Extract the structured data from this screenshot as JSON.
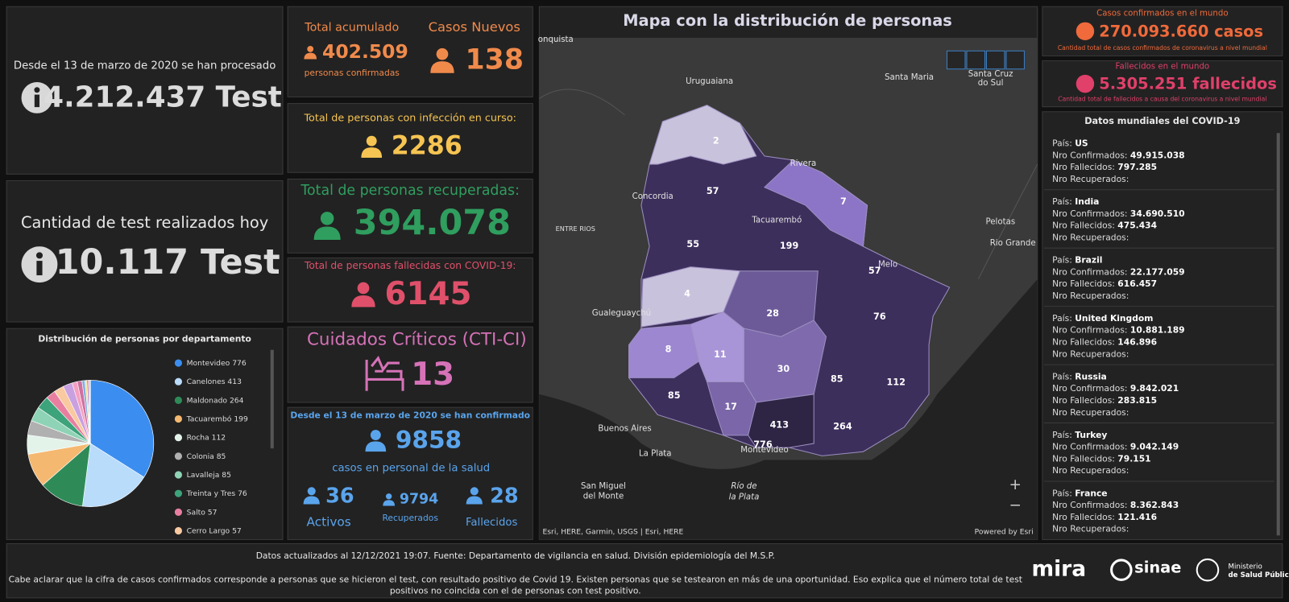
{
  "tests_total": {
    "caption": "Desde el 13 de marzo de 2020 se han procesado",
    "value": "4.212.437 Test"
  },
  "tests_today": {
    "caption": "Cantidad de test realizados hoy",
    "value": "10.117 Test"
  },
  "chart_data": {
    "type": "pie",
    "title": "Distribución de personas por departamento",
    "categories": [
      "Montevideo",
      "Canelones",
      "Maldonado",
      "Tacuarembó",
      "Rocha",
      "Colonia",
      "Lavalleja",
      "Treinta y Tres",
      "Salto",
      "Cerro Largo",
      null,
      null,
      null,
      null,
      null,
      null,
      null,
      null,
      null
    ],
    "values": [
      776,
      413,
      264,
      199,
      112,
      85,
      85,
      76,
      57,
      57,
      55,
      30,
      28,
      17,
      11,
      8,
      7,
      4,
      2
    ],
    "colors": [
      "#3b8ef0",
      "#b9dcfb",
      "#2e8b57",
      "#f5b870",
      "#e3f3ea",
      "#b0b0b0",
      "#8fd3b6",
      "#3da37a",
      "#e87fa0",
      "#f9c9a0",
      "#c9a0e0",
      "#f5a0c0",
      "#d070a0",
      "#7fb0e0",
      "#f0e090",
      "#a080d0",
      "#e06080",
      "#90c0a0",
      "#ffd0e0"
    ]
  },
  "cases": {
    "total_label": "Total acumulado",
    "total": "402.509",
    "total_caption": "personas confirmadas",
    "new_label": "Casos Nuevos",
    "new": "138"
  },
  "active": {
    "label": "Total de personas con infección en curso:",
    "value": "2286"
  },
  "recovered": {
    "label": "Total de personas recuperadas:",
    "value": "394.078"
  },
  "deaths": {
    "label": "Total de personas fallecidas con COVID-19:",
    "value": "6145"
  },
  "icu": {
    "label": "Cuidados Críticos (CTI-CI)",
    "value": "13"
  },
  "health_staff": {
    "caption": "Desde el 13 de marzo de 2020 se han confirmado",
    "value": "9858",
    "subtitle": "casos en personal de la salud",
    "active": "36",
    "active_label": "Activos",
    "recovered": "9794",
    "recovered_label": "Recuperados",
    "deaths": "28",
    "deaths_label": "Fallecidos"
  },
  "map": {
    "title": "Mapa con la distribución de personas",
    "places": [
      {
        "label": "onquista"
      },
      {
        "label": "Uruguaiana"
      },
      {
        "label": "Santa Maria"
      },
      {
        "label": "Santa Cruz"
      },
      {
        "label": "do Sul"
      },
      {
        "label": "Concordia"
      },
      {
        "label": "Rivera"
      },
      {
        "label": "Tacuarembó"
      },
      {
        "label": "ENTRE RIOS"
      },
      {
        "label": "Pelotas"
      },
      {
        "label": "Rio Grande"
      },
      {
        "label": "Melo"
      },
      {
        "label": "Gualeguaychú"
      },
      {
        "label": "Buenos Aires"
      },
      {
        "label": "Montevideo"
      },
      {
        "label": "La Plata"
      },
      {
        "label": "San Miguel"
      },
      {
        "label": "del Monte"
      },
      {
        "label": "Río de"
      },
      {
        "label": "la Plata"
      }
    ],
    "regions": [
      {
        "label": "2"
      },
      {
        "label": "57"
      },
      {
        "label": "7"
      },
      {
        "label": "55"
      },
      {
        "label": "199"
      },
      {
        "label": "57"
      },
      {
        "label": "4"
      },
      {
        "label": "28"
      },
      {
        "label": "76"
      },
      {
        "label": "8"
      },
      {
        "label": "11"
      },
      {
        "label": "30"
      },
      {
        "label": "85"
      },
      {
        "label": "112"
      },
      {
        "label": "85"
      },
      {
        "label": "17"
      },
      {
        "label": "413"
      },
      {
        "label": "264"
      },
      {
        "label": "776"
      }
    ],
    "attribution": "Esri, HERE, Garmin, USGS | Esri, HERE",
    "powered": "Powered by Esri"
  },
  "world": {
    "confirmed": {
      "title": "Casos confirmados en el mundo",
      "value": "270.093.660 casos",
      "caption": "Cantidad total de casos confirmados de coronavirus a nivel mundial"
    },
    "deaths": {
      "title": "Fallecidos en el mundo",
      "value": "5.305.251 fallecidos",
      "caption": "Cantidad total de fallecidos a causa del coronavirus a nivel mundial"
    },
    "list_title": "Datos mundiales del COVID-19",
    "fields": {
      "country": "País:",
      "confirmed": "Nro Confirmados:",
      "deaths": "Nro Fallecidos:",
      "recovered": "Nro Recuperados:"
    },
    "countries": [
      {
        "name": "US",
        "confirmed": "49.915.038",
        "deaths": "797.285"
      },
      {
        "name": "India",
        "confirmed": "34.690.510",
        "deaths": "475.434"
      },
      {
        "name": "Brazil",
        "confirmed": "22.177.059",
        "deaths": "616.457"
      },
      {
        "name": "United Kingdom",
        "confirmed": "10.881.189",
        "deaths": "146.896"
      },
      {
        "name": "Russia",
        "confirmed": "9.842.021",
        "deaths": "283.815"
      },
      {
        "name": "Turkey",
        "confirmed": "9.042.149",
        "deaths": "79.151"
      },
      {
        "name": "France",
        "confirmed": "8.362.843",
        "deaths": "121.416"
      }
    ]
  },
  "footer": {
    "updated": "Datos actualizados al 12/12/2021 19:07. Fuente: Departamento de vigilancia en salud. División epidemiología del M.S.P.",
    "note_line1": "Cabe aclarar que la cifra de casos confirmados corresponde a personas que se hicieron el test, con resultado positivo de Covid 19. Existen personas que se testearon en más de una oportunidad. Eso explica que el número total de test",
    "note_line2": "positivos no coincida con el de personas con test positivo.",
    "logos": [
      "mira",
      "sinae",
      "Ministerio",
      "de Salud Pública"
    ]
  }
}
